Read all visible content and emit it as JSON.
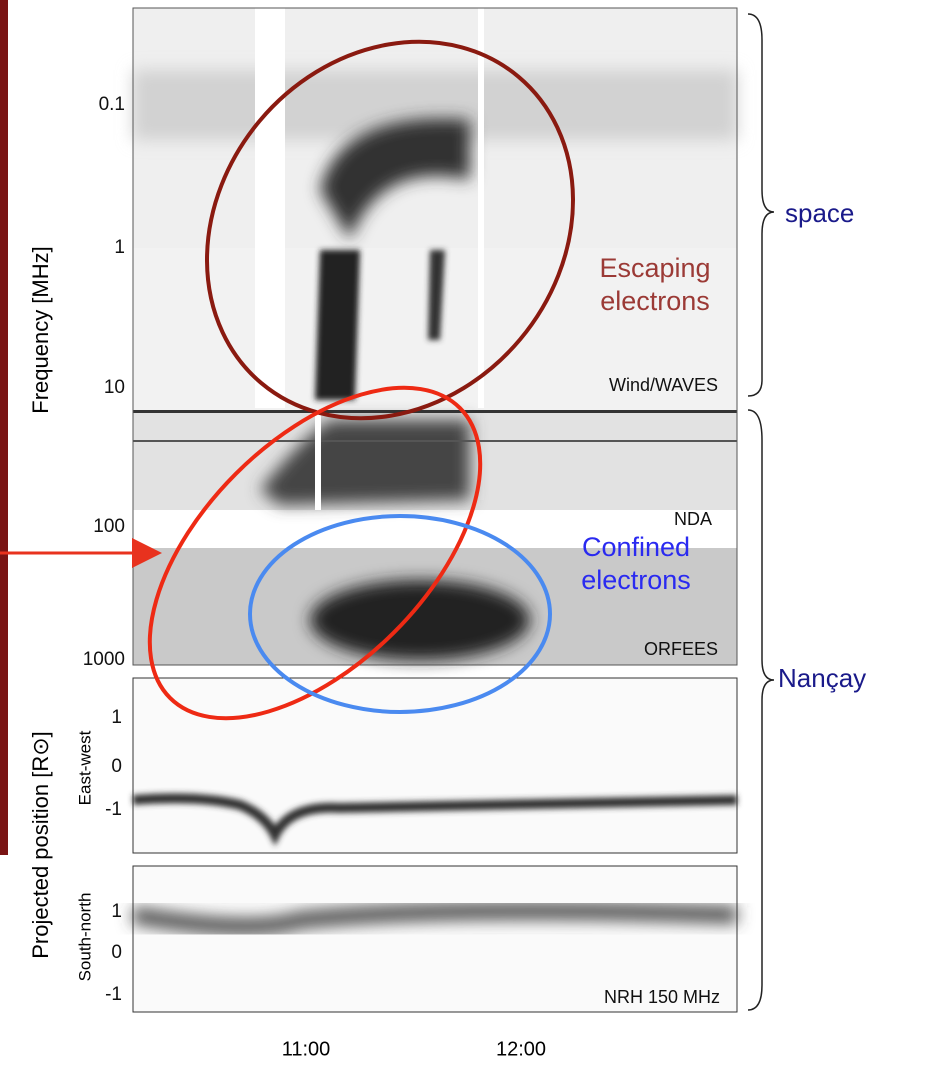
{
  "figure": {
    "y_axis_label": "Frequency [MHz]",
    "frequency_ticks": [
      "0.1",
      "1",
      "10",
      "100",
      "1000"
    ],
    "position_axis_label": "Projected position [R⊙]",
    "east_west_label": "East-west",
    "south_north_label": "South-north",
    "east_west_ticks": [
      "1",
      "0",
      "-1"
    ],
    "south_north_ticks": [
      "1",
      "0",
      "-1"
    ],
    "time_ticks": [
      "11:00",
      "12:00"
    ],
    "panel_labels": [
      "Wind/WAVES",
      "NDA",
      "ORFEES",
      "NRH 150 MHz"
    ]
  },
  "annotations": {
    "escaping": [
      "Escaping",
      "electrons"
    ],
    "confined": [
      "Confined",
      "electrons"
    ],
    "space": "space",
    "nancay": "Nançay"
  }
}
